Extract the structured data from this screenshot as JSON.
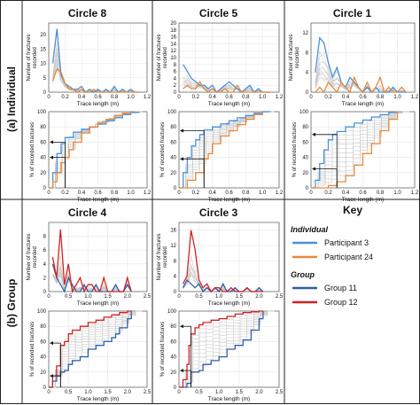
{
  "figure": {
    "section_a": "(a) Individual",
    "section_b": "(b) Group",
    "key": {
      "title": "Key",
      "individual_heading": "Individual",
      "group_heading": "Group",
      "entries": [
        {
          "label": "Participant 3",
          "color": "#4a90d9"
        },
        {
          "label": "Participant 24",
          "color": "#e8883a"
        },
        {
          "label": "Group 11",
          "color": "#2f5fa8"
        },
        {
          "label": "Group 12",
          "color": "#d42020"
        }
      ]
    },
    "freq_ylabel_line1": "Number of fractures",
    "freq_ylabel_line2": "recorded",
    "cum_ylabel": "% of recorded fractures",
    "xlabel": "Trace length (m)",
    "colors": {
      "grey": "#c4c4c4",
      "p3": "#4a90d9",
      "p24": "#e8883a",
      "g11": "#2f5fa8",
      "g12": "#d42020",
      "border": "#222222",
      "grid": "#e6e6e6"
    }
  },
  "chart_data": [
    {
      "id": "c8",
      "title": "Circle 8",
      "type": "line",
      "row": "individual",
      "xlim": [
        0,
        1.2
      ],
      "xticks": [
        0,
        0.2,
        0.4,
        0.6,
        0.8,
        1.0,
        1.2
      ],
      "freq": {
        "ylim": [
          0,
          24
        ],
        "yticks": [
          0,
          5,
          10,
          15,
          20
        ],
        "x": [
          0.05,
          0.1,
          0.15,
          0.2,
          0.25,
          0.3,
          0.35,
          0.4,
          0.45,
          0.5,
          0.55,
          0.6,
          0.65,
          0.7,
          0.75,
          0.8,
          0.85,
          0.9,
          0.95,
          1.0,
          1.05,
          1.1
        ],
        "series": [
          {
            "name": "Participant 3",
            "color": "p3",
            "values": [
              10,
              22,
              6,
              3,
              2,
              1,
              1,
              2,
              0,
              1,
              0,
              1,
              0,
              1,
              0,
              2,
              0,
              1,
              0,
              1,
              0,
              0
            ]
          },
          {
            "name": "Participant 24",
            "color": "p24",
            "values": [
              4,
              8,
              7,
              3,
              1,
              1,
              0,
              1,
              0,
              0,
              1,
              0,
              0,
              0,
              0,
              0,
              0,
              0,
              0,
              0,
              0,
              0
            ]
          }
        ]
      },
      "cum": {
        "ylim": [
          0,
          100
        ],
        "yticks": [
          0,
          20,
          40,
          60,
          80,
          100
        ],
        "series": [
          {
            "name": "Participant 3",
            "color": "p3",
            "x": [
              0.0,
              0.05,
              0.1,
              0.15,
              0.2,
              0.3,
              0.4,
              0.5,
              0.6,
              0.7,
              0.8,
              0.9,
              1.0,
              1.1
            ],
            "values": [
              0,
              20,
              45,
              58,
              66,
              73,
              77,
              80,
              84,
              88,
              92,
              96,
              99,
              100
            ]
          },
          {
            "name": "Participant 24",
            "color": "p24",
            "x": [
              0.0,
              0.05,
              0.1,
              0.15,
              0.2,
              0.25,
              0.3,
              0.4,
              0.5,
              0.6,
              0.7,
              0.8,
              0.9,
              1.0
            ],
            "values": [
              0,
              8,
              20,
              33,
              40,
              50,
              60,
              72,
              80,
              86,
              90,
              95,
              98,
              100
            ]
          }
        ],
        "annot": [
          {
            "x": 0.2,
            "y": 60
          },
          {
            "x": 0.2,
            "y": 40
          }
        ]
      }
    },
    {
      "id": "c5",
      "title": "Circle 5",
      "type": "line",
      "row": "individual",
      "xlim": [
        0,
        1.2
      ],
      "xticks": [
        0,
        0.2,
        0.4,
        0.6,
        0.8,
        1.0,
        1.2
      ],
      "freq": {
        "ylim": [
          0,
          20
        ],
        "yticks": [
          0,
          2,
          4,
          6,
          8,
          10,
          12,
          14,
          16,
          18,
          20
        ],
        "x": [
          0.05,
          0.1,
          0.15,
          0.2,
          0.25,
          0.3,
          0.35,
          0.4,
          0.45,
          0.5,
          0.55,
          0.6,
          0.65,
          0.7,
          0.75,
          0.8,
          0.85,
          0.9,
          0.95,
          1.0,
          1.05,
          1.1
        ],
        "series": [
          {
            "name": "Participant 3",
            "color": "p3",
            "values": [
              8,
              6,
              4,
              3,
              2,
              2,
              1,
              2,
              0,
              1,
              2,
              3,
              2,
              1,
              0,
              1,
              2,
              0,
              1,
              0,
              0,
              0
            ]
          },
          {
            "name": "Participant 24",
            "color": "p24",
            "values": [
              1,
              2,
              1,
              1,
              3,
              1,
              0,
              1,
              0,
              0,
              1,
              0,
              0,
              2,
              0,
              0,
              0,
              0,
              0,
              0,
              0,
              0
            ]
          }
        ]
      },
      "cum": {
        "ylim": [
          0,
          100
        ],
        "yticks": [
          0,
          20,
          40,
          60,
          80,
          100
        ],
        "series": [
          {
            "name": "Participant 3",
            "color": "p3",
            "x": [
              0.0,
              0.05,
              0.1,
              0.15,
              0.2,
              0.25,
              0.3,
              0.4,
              0.5,
              0.6,
              0.7,
              0.8,
              0.9,
              1.0,
              1.1
            ],
            "values": [
              0,
              20,
              40,
              55,
              63,
              70,
              76,
              80,
              84,
              88,
              92,
              95,
              98,
              100,
              100
            ]
          },
          {
            "name": "Participant 24",
            "color": "p24",
            "x": [
              0.0,
              0.1,
              0.2,
              0.3,
              0.35,
              0.4,
              0.5,
              0.6,
              0.7,
              0.8,
              0.9,
              1.0
            ],
            "values": [
              0,
              10,
              20,
              38,
              45,
              58,
              68,
              75,
              83,
              90,
              96,
              100
            ]
          }
        ],
        "annot": [
          {
            "x": 0.3,
            "y": 75
          },
          {
            "x": 0.3,
            "y": 38
          }
        ]
      }
    },
    {
      "id": "c1",
      "title": "Circle 1",
      "type": "line",
      "row": "individual",
      "xlim": [
        0,
        1.2
      ],
      "xticks": [
        0,
        0.2,
        0.4,
        0.6,
        0.8,
        1.0,
        1.2
      ],
      "freq": {
        "ylim": [
          0,
          14
        ],
        "yticks": [
          0,
          4,
          8,
          12
        ],
        "x": [
          0.05,
          0.1,
          0.15,
          0.2,
          0.25,
          0.3,
          0.35,
          0.4,
          0.45,
          0.5,
          0.55,
          0.6,
          0.65,
          0.7,
          0.75,
          0.8,
          0.85,
          0.9,
          0.95,
          1.0,
          1.05,
          1.1
        ],
        "series": [
          {
            "name": "Participant 3",
            "color": "p3",
            "values": [
              4,
              11,
              10,
              6,
              3,
              5,
              2,
              1,
              3,
              2,
              1,
              0,
              1,
              0,
              1,
              0,
              0,
              0,
              1,
              0,
              0,
              0
            ]
          },
          {
            "name": "Participant 24",
            "color": "p24",
            "values": [
              0,
              1,
              0,
              2,
              1,
              0,
              2,
              1,
              0,
              3,
              1,
              0,
              2,
              0,
              1,
              3,
              0,
              1,
              0,
              0,
              1,
              0
            ]
          }
        ]
      },
      "cum": {
        "ylim": [
          0,
          100
        ],
        "yticks": [
          0,
          20,
          40,
          60,
          80,
          100
        ],
        "series": [
          {
            "name": "Participant 3",
            "color": "p3",
            "x": [
              0.0,
              0.05,
              0.1,
              0.15,
              0.2,
              0.25,
              0.3,
              0.4,
              0.5,
              0.6,
              0.7,
              0.8,
              0.9,
              1.0
            ],
            "values": [
              0,
              10,
              32,
              50,
              63,
              70,
              74,
              80,
              85,
              89,
              93,
              96,
              99,
              100
            ]
          },
          {
            "name": "Participant 24",
            "color": "p24",
            "x": [
              0.0,
              0.2,
              0.3,
              0.4,
              0.5,
              0.6,
              0.7,
              0.8,
              0.9,
              1.0
            ],
            "values": [
              0,
              3,
              8,
              16,
              30,
              45,
              58,
              75,
              90,
              100
            ]
          }
        ],
        "annot": [
          {
            "x": 0.3,
            "y": 70
          },
          {
            "x": 0.3,
            "y": 25
          }
        ]
      }
    },
    {
      "id": "c4",
      "title": "Circle 4",
      "type": "line",
      "row": "group",
      "xlim": [
        0,
        2.5
      ],
      "xticks": [
        0,
        0.5,
        1.0,
        1.5,
        2.0,
        2.5
      ],
      "freq": {
        "ylim": [
          0,
          10
        ],
        "yticks": [
          0,
          2,
          4,
          6,
          8
        ],
        "x": [
          0.1,
          0.2,
          0.3,
          0.4,
          0.5,
          0.6,
          0.7,
          0.8,
          0.9,
          1.0,
          1.1,
          1.2,
          1.3,
          1.4,
          1.5,
          1.6,
          1.7,
          1.8,
          1.9,
          2.0,
          2.1
        ],
        "series": [
          {
            "name": "Group 11",
            "color": "g11",
            "values": [
              4,
              2,
              1,
              0,
              2,
              1,
              0,
              0,
              1,
              0,
              0,
              1,
              0,
              0,
              0,
              0,
              1,
              0,
              0,
              1,
              0
            ]
          },
          {
            "name": "Group 12",
            "color": "g12",
            "values": [
              5,
              2,
              9,
              1,
              4,
              0,
              1,
              2,
              0,
              1,
              1,
              0,
              0,
              2,
              0,
              0,
              0,
              0,
              0,
              2,
              0
            ]
          }
        ]
      },
      "cum": {
        "ylim": [
          0,
          100
        ],
        "yticks": [
          0,
          20,
          40,
          60,
          80,
          100
        ],
        "series": [
          {
            "name": "Group 11",
            "color": "g11",
            "x": [
              0.0,
              0.1,
              0.2,
              0.3,
              0.4,
              0.5,
              0.6,
              0.8,
              1.0,
              1.2,
              1.4,
              1.6,
              1.7,
              1.8,
              2.0,
              2.1
            ],
            "values": [
              0,
              8,
              15,
              20,
              22,
              30,
              35,
              40,
              50,
              55,
              60,
              65,
              70,
              78,
              90,
              100
            ]
          },
          {
            "name": "Group 12",
            "color": "g12",
            "x": [
              0.0,
              0.1,
              0.2,
              0.3,
              0.4,
              0.5,
              0.6,
              0.8,
              1.0,
              1.2,
              1.4,
              1.6,
              1.8,
              2.0,
              2.1
            ],
            "values": [
              0,
              15,
              28,
              55,
              60,
              70,
              75,
              80,
              85,
              88,
              92,
              95,
              98,
              100,
              100
            ]
          }
        ],
        "annot": [
          {
            "x": 0.3,
            "y": 58
          },
          {
            "x": 0.3,
            "y": 15
          }
        ]
      }
    },
    {
      "id": "c3",
      "title": "Circle 3",
      "type": "line",
      "row": "group",
      "xlim": [
        0,
        2.5
      ],
      "xticks": [
        0,
        0.5,
        1.0,
        1.5,
        2.0,
        2.5
      ],
      "freq": {
        "ylim": [
          0,
          18
        ],
        "yticks": [
          0,
          4,
          8,
          12,
          16
        ],
        "x": [
          0.1,
          0.2,
          0.3,
          0.4,
          0.5,
          0.6,
          0.7,
          0.8,
          0.9,
          1.0,
          1.1,
          1.2,
          1.3,
          1.4,
          1.5,
          1.6,
          1.7,
          1.8,
          1.9,
          2.0,
          2.1
        ],
        "series": [
          {
            "name": "Group 11",
            "color": "g11",
            "values": [
              1,
              3,
              2,
              1,
              2,
              0,
              1,
              0,
              1,
              0,
              2,
              0,
              0,
              1,
              0,
              0,
              1,
              0,
              0,
              1,
              0
            ]
          },
          {
            "name": "Group 12",
            "color": "g12",
            "values": [
              2,
              4,
              16,
              11,
              3,
              1,
              2,
              0,
              1,
              1,
              0,
              0,
              1,
              0,
              0,
              0,
              1,
              0,
              0,
              0,
              0
            ]
          }
        ]
      },
      "cum": {
        "ylim": [
          0,
          100
        ],
        "yticks": [
          0,
          20,
          40,
          60,
          80,
          100
        ],
        "series": [
          {
            "name": "Group 11",
            "color": "g11",
            "x": [
              0.0,
              0.2,
              0.3,
              0.5,
              0.6,
              0.8,
              1.0,
              1.2,
              1.4,
              1.6,
              1.8,
              2.0,
              2.1
            ],
            "values": [
              0,
              5,
              20,
              22,
              30,
              35,
              40,
              50,
              55,
              62,
              75,
              90,
              100
            ]
          },
          {
            "name": "Group 12",
            "color": "g12",
            "x": [
              0.0,
              0.1,
              0.2,
              0.25,
              0.3,
              0.4,
              0.5,
              0.6,
              0.8,
              1.0,
              1.2,
              1.4,
              1.6,
              1.8,
              2.0,
              2.1
            ],
            "values": [
              0,
              10,
              30,
              55,
              70,
              78,
              82,
              85,
              88,
              90,
              93,
              96,
              98,
              99,
              100,
              100
            ]
          }
        ],
        "annot": [
          {
            "x": 0.3,
            "y": 80
          },
          {
            "x": 0.3,
            "y": 22
          }
        ]
      }
    }
  ]
}
